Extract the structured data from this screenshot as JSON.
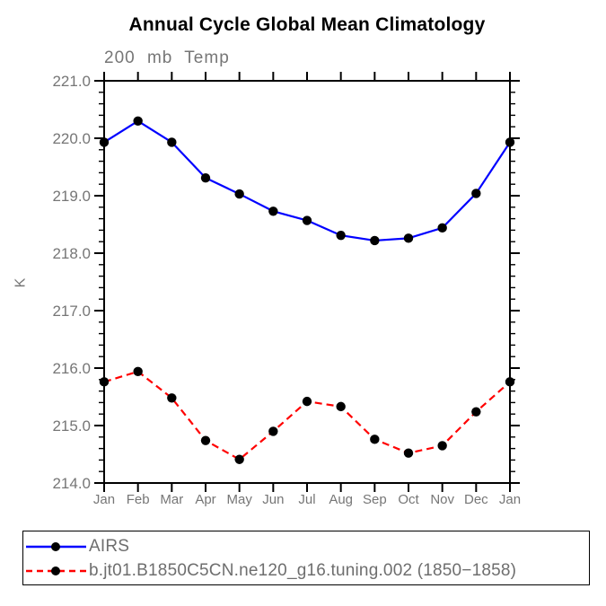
{
  "chart_data": {
    "type": "line",
    "title": "Annual Cycle Global Mean Climatology",
    "subtitle": "200 mb Temp",
    "ylabel": "K",
    "xlabel": "",
    "x_categories": [
      "Jan",
      "Feb",
      "Mar",
      "Apr",
      "May",
      "Jun",
      "Jul",
      "Aug",
      "Sep",
      "Oct",
      "Nov",
      "Dec",
      "Jan"
    ],
    "ylim": [
      214.0,
      221.0
    ],
    "y_major_step": 1.0,
    "y_minor_step": 0.2,
    "y_tick_labels": [
      "214.0",
      "215.0",
      "216.0",
      "217.0",
      "218.0",
      "219.0",
      "220.0",
      "221.0"
    ],
    "grid": false,
    "legend_position": "bottom-left",
    "axis_color": "#000000",
    "text_color": "#767676",
    "series": [
      {
        "name": "AIRS",
        "color": "#0000ff",
        "line_style": "solid",
        "marker": "filled-circle",
        "marker_color": "#000000",
        "values": [
          219.93,
          220.3,
          219.93,
          219.31,
          219.03,
          218.73,
          218.57,
          218.31,
          218.22,
          218.26,
          218.44,
          219.04,
          219.93
        ]
      },
      {
        "name": "b.jt01.B1850C5CN.ne120_g16.tuning.002 (1850−1858)",
        "color": "#ff0000",
        "line_style": "dashed",
        "marker": "filled-circle",
        "marker_color": "#000000",
        "values": [
          215.76,
          215.94,
          215.48,
          214.74,
          214.41,
          214.9,
          215.42,
          215.33,
          214.76,
          214.52,
          214.65,
          215.24,
          215.76
        ]
      }
    ]
  }
}
